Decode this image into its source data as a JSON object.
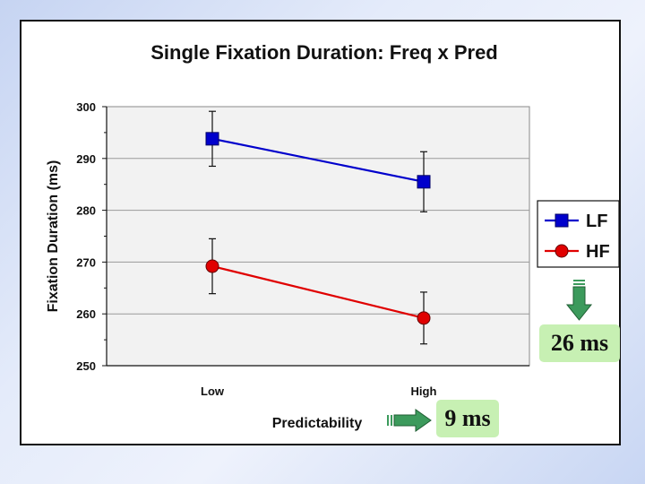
{
  "chart_data": {
    "type": "line",
    "title": "Single Fixation Duration:  Freq x Pred",
    "xlabel": "Predictability",
    "ylabel": "Fixation Duration (ms)",
    "categories": [
      "Low",
      "High"
    ],
    "ylim": [
      250,
      300
    ],
    "yticks": [
      250,
      260,
      270,
      280,
      290,
      300
    ],
    "grid": true,
    "legend_position": "right",
    "series": [
      {
        "name": "LF",
        "values": [
          293.8,
          285.5
        ],
        "errors": [
          5.3,
          5.8
        ],
        "color": "#0000cc",
        "marker": "square"
      },
      {
        "name": "HF",
        "values": [
          269.2,
          259.2
        ],
        "errors": [
          5.3,
          5.0
        ],
        "color": "#e00000",
        "marker": "circle"
      }
    ]
  },
  "annotations": {
    "freq_effect": "26 ms",
    "pred_effect": "9 ms"
  },
  "colors": {
    "callout_bg": "#c7f0b3",
    "arrow_green": "#3c9a5c",
    "plot_bg": "#f2f2f2"
  }
}
